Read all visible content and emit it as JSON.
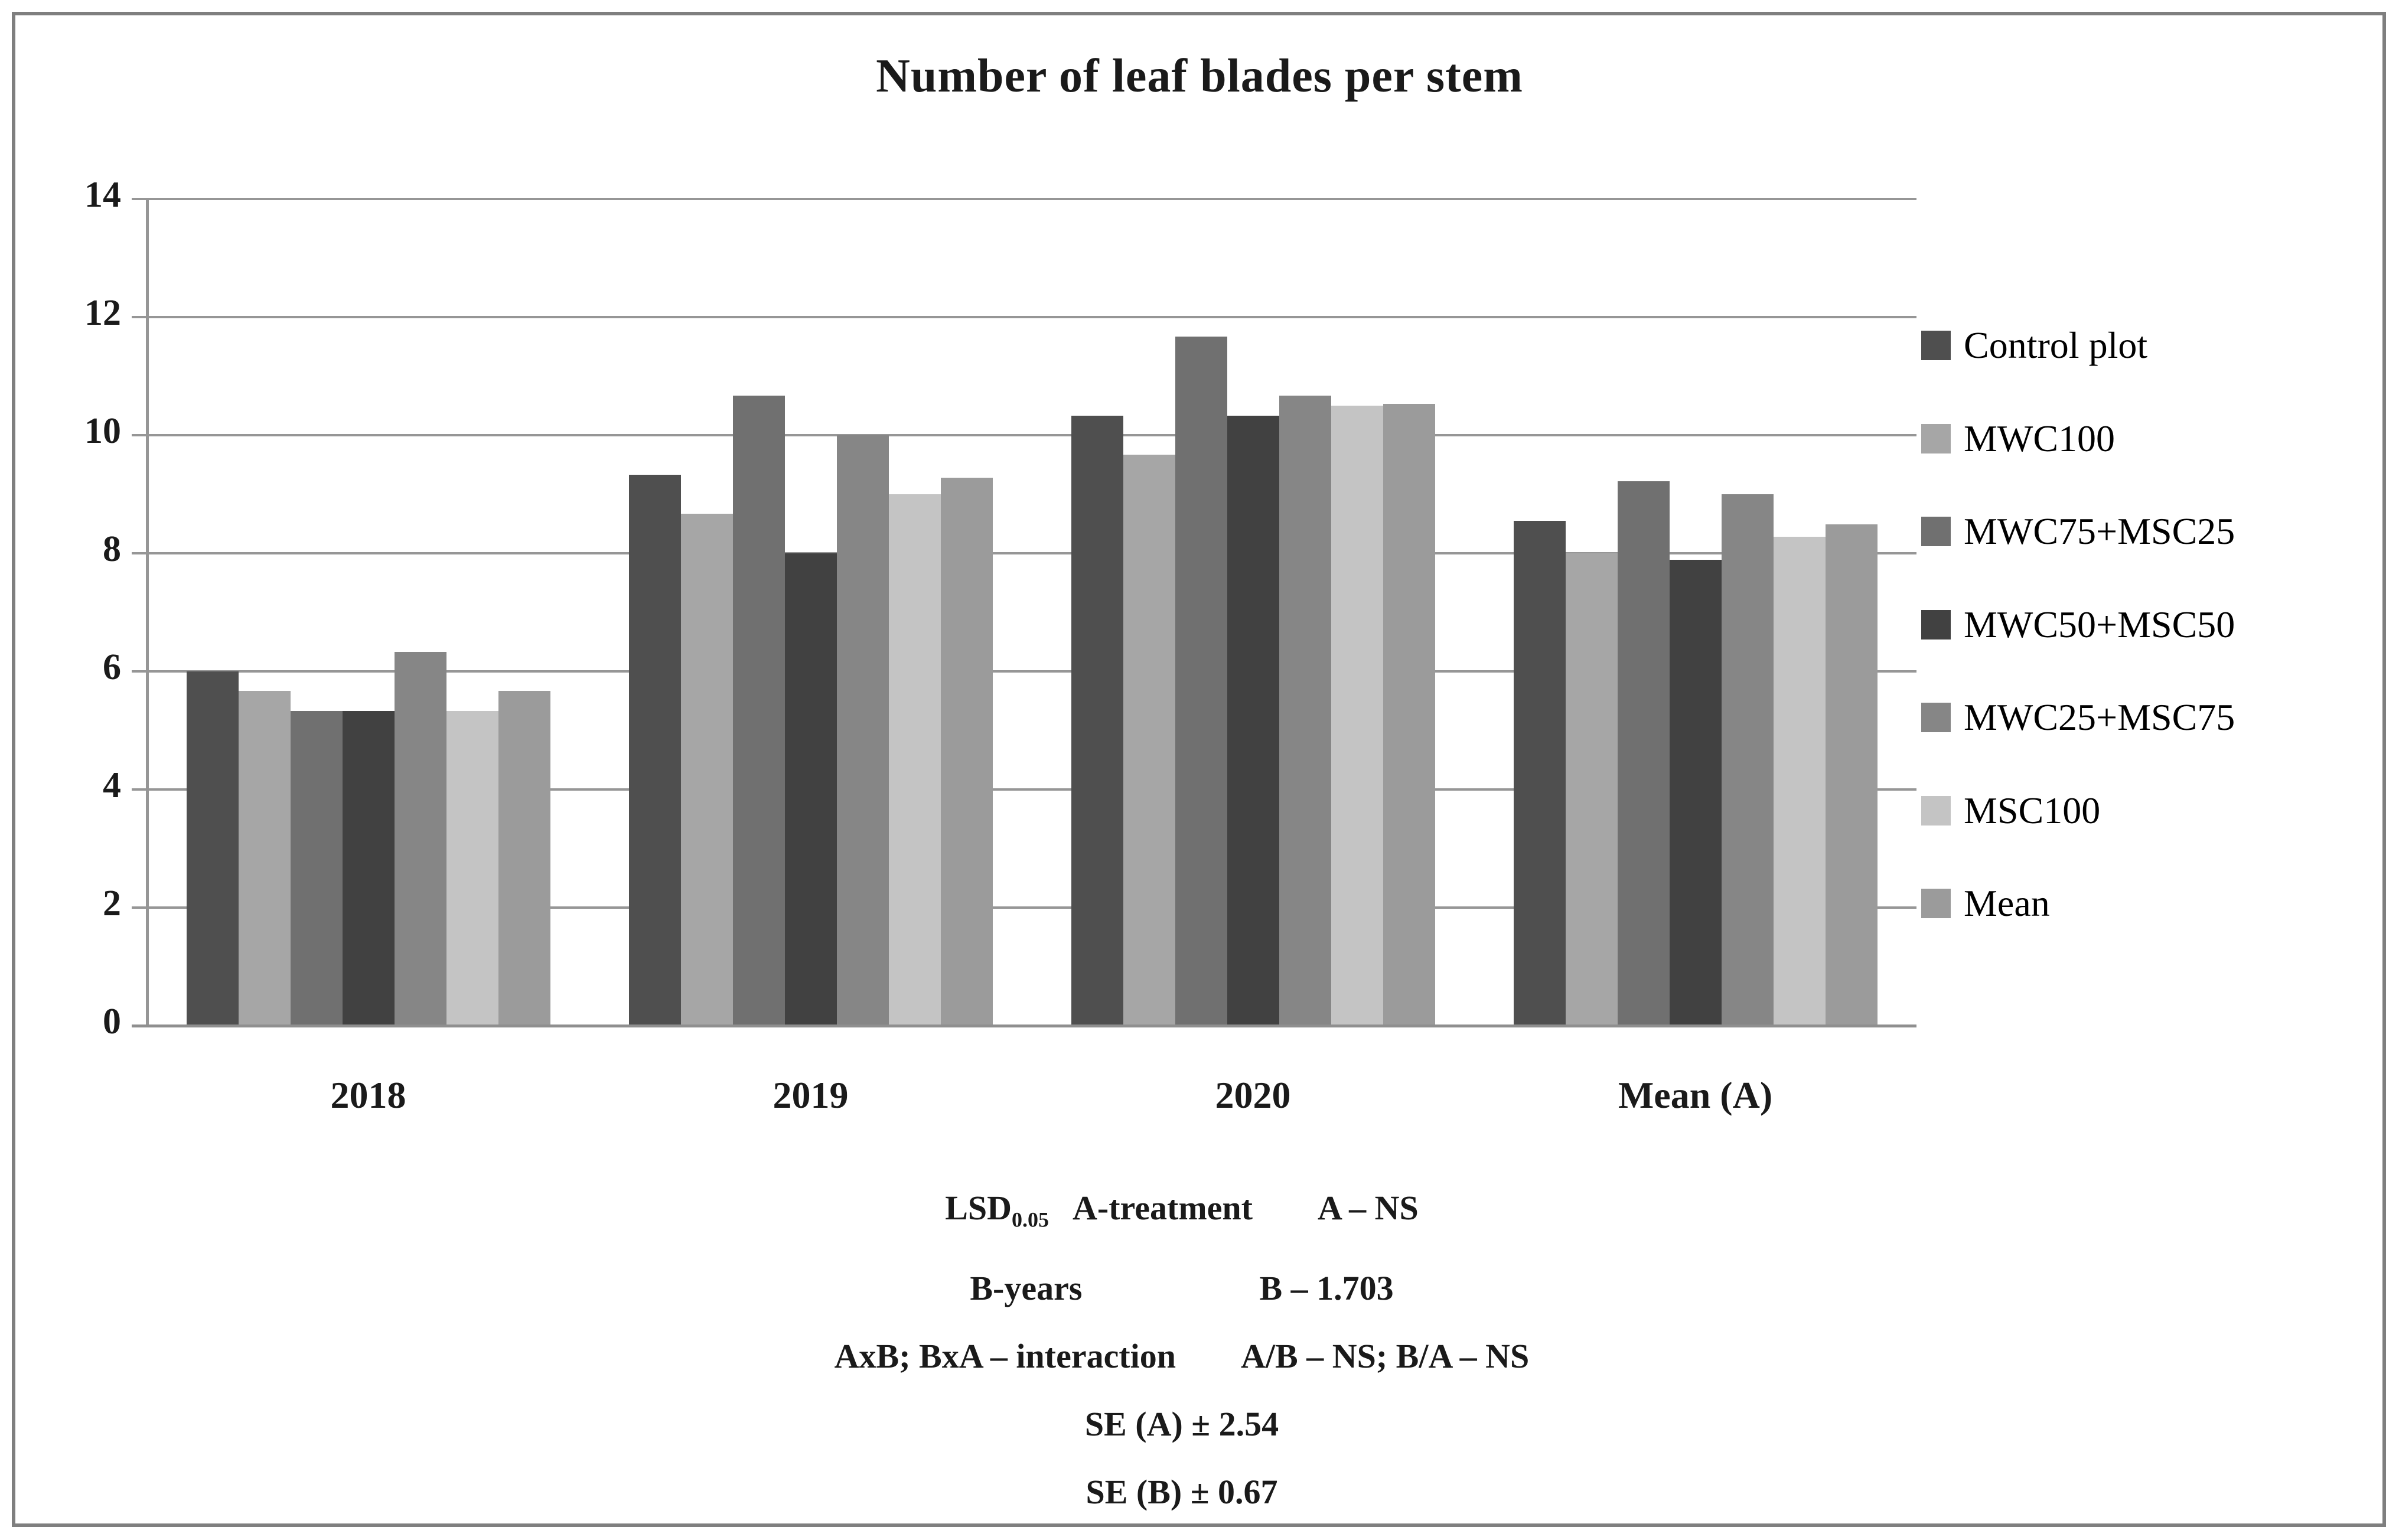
{
  "title": "Number of leaf blades per stem",
  "chart_data": {
    "type": "bar",
    "title": "Number of leaf blades per stem",
    "categories": [
      "2018",
      "2019",
      "2020",
      "Mean (A)"
    ],
    "series": [
      {
        "name": "Control plot",
        "color": "#4f4f4f",
        "values": [
          6.0,
          9.33,
          10.33,
          8.55
        ]
      },
      {
        "name": "MWC100",
        "color": "#a6a6a6",
        "values": [
          5.67,
          8.67,
          9.67,
          8.0
        ]
      },
      {
        "name": "MWC75+MSC25",
        "color": "#707070",
        "values": [
          5.33,
          10.67,
          11.67,
          9.22
        ]
      },
      {
        "name": "MWC50+MSC50",
        "color": "#414141",
        "values": [
          5.33,
          8.0,
          10.33,
          7.89
        ]
      },
      {
        "name": "MWC25+MSC75",
        "color": "#868686",
        "values": [
          6.33,
          10.0,
          10.67,
          9.0
        ]
      },
      {
        "name": "MSC100",
        "color": "#c4c4c4",
        "values": [
          5.33,
          9.0,
          10.5,
          8.28
        ]
      },
      {
        "name": "Mean",
        "color": "#9b9b9b",
        "values": [
          5.67,
          9.28,
          10.53,
          8.49
        ]
      }
    ],
    "ylim": [
      0,
      14
    ],
    "yticks": [
      0,
      2,
      4,
      6,
      8,
      10,
      12,
      14
    ],
    "grid": true,
    "legend_position": "right",
    "xlabel": "",
    "ylabel": ""
  },
  "stats_annotation": {
    "row1": {
      "lsd": "LSD",
      "lsd_sub": "0.05",
      "label": "A-treatment",
      "value": "A – NS"
    },
    "row2": {
      "label": "B-years",
      "value": "B – 1.703"
    },
    "row3": {
      "label": "AxB; BxA – interaction",
      "value": "A/B – NS; B/A – NS"
    },
    "row4": "SE (A) ± 2.54",
    "row5": "SE (B) ± 0.67"
  },
  "colors": {
    "gridline": "#969696",
    "axis": "#969696",
    "frame_border": "#7f7f7f",
    "background": "#ffffff"
  }
}
